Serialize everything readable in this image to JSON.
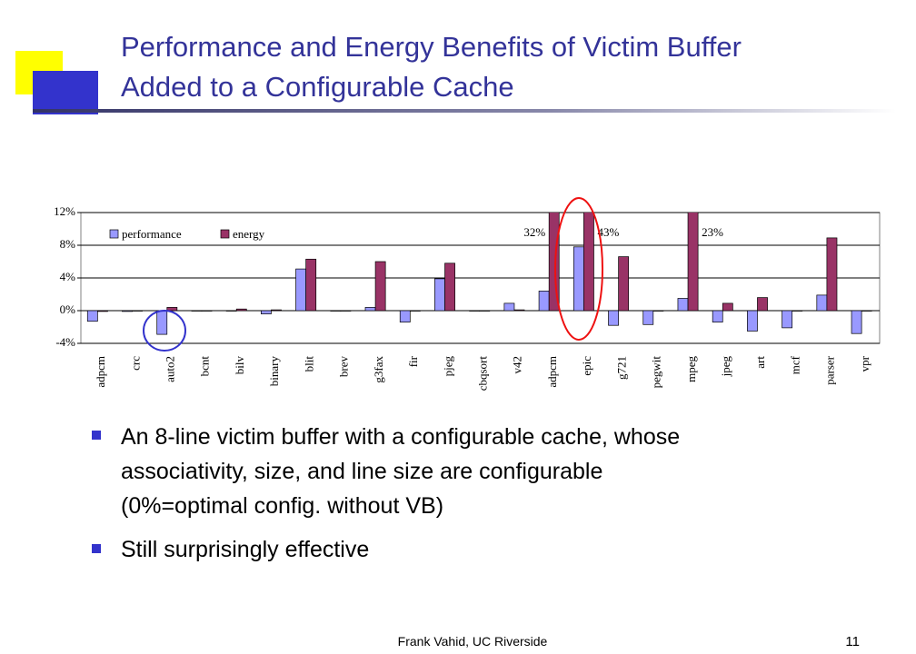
{
  "title_lines": [
    "Performance and Energy Benefits of Victim Buffer",
    "Added to a Configurable Cache"
  ],
  "bullets": [
    "An 8-line victim buffer with a configurable cache, whose",
    "associativity, size, and line size are configurable",
    "(0%=optimal config. without VB)",
    "Still surprisingly effective"
  ],
  "footer": "Frank Vahid, UC Riverside",
  "page_number": "11",
  "chart_data": {
    "type": "bar",
    "categories": [
      "adpcm",
      "crc",
      "auto2",
      "bcnt",
      "bilv",
      "binary",
      "blit",
      "brev",
      "g3fax",
      "fir",
      "pjeg",
      "cbqsort",
      "v42",
      "adpcm",
      "epic",
      "g721",
      "pegwit",
      "mpeg",
      "jpeg",
      "art",
      "mcf",
      "parser",
      "vpr"
    ],
    "series": [
      {
        "name": "performance",
        "color": "#9999ff",
        "values": [
          -1.3,
          -0.1,
          -2.9,
          0,
          0,
          -0.4,
          5.1,
          0,
          0.4,
          -1.4,
          3.9,
          0,
          0.9,
          2.4,
          7.8,
          -1.8,
          -1.7,
          1.5,
          -1.4,
          -2.5,
          -2.1,
          1.9,
          -2.8
        ]
      },
      {
        "name": "energy",
        "color": "#993366",
        "values": [
          -0.1,
          0,
          0.4,
          0,
          0.2,
          0.1,
          6.3,
          0,
          6.0,
          0,
          5.8,
          0,
          0.1,
          32,
          43,
          6.6,
          0,
          23,
          0.9,
          1.6,
          0,
          8.9,
          0
        ],
        "value_labels": [
          null,
          null,
          null,
          null,
          null,
          null,
          null,
          null,
          null,
          null,
          null,
          null,
          null,
          "32%",
          "43%",
          null,
          null,
          "23%",
          null,
          null,
          null,
          null,
          null
        ]
      }
    ],
    "ylim": [
      -4,
      12
    ],
    "yticks": [
      {
        "value": -4,
        "label": "-4%"
      },
      {
        "value": 0,
        "label": "0%"
      },
      {
        "value": 4,
        "label": "4%"
      },
      {
        "value": 8,
        "label": "8%"
      },
      {
        "value": 12,
        "label": "12%"
      }
    ],
    "grid": true,
    "legend": "top-left"
  }
}
